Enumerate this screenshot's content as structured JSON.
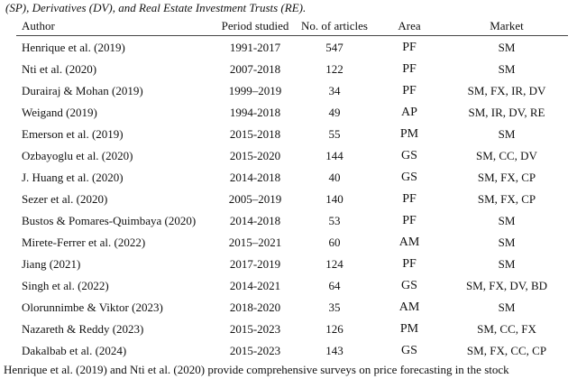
{
  "top_text": "(SP), Derivatives (DV), and Real Estate Investment Trusts (RE).",
  "table": {
    "headers": [
      "Author",
      "Period studied",
      "No. of articles",
      "Area",
      "Market"
    ],
    "rows": [
      [
        "Henrique et al. (2019)",
        "1991-2017",
        "547",
        "PF",
        "SM"
      ],
      [
        "Nti et al. (2020)",
        "2007-2018",
        "122",
        "PF",
        "SM"
      ],
      [
        "Durairaj & Mohan (2019)",
        "1999–2019",
        "34",
        "PF",
        "SM, FX, IR, DV"
      ],
      [
        "Weigand (2019)",
        "1994-2018",
        "49",
        "AP",
        "SM, IR, DV, RE"
      ],
      [
        "Emerson et al. (2019)",
        "2015-2018",
        "55",
        "PM",
        "SM"
      ],
      [
        "Ozbayoglu et al. (2020)",
        "2015-2020",
        "144",
        "GS",
        "SM, CC, DV"
      ],
      [
        "J. Huang et al. (2020)",
        "2014-2018",
        "40",
        "GS",
        "SM, FX, CP"
      ],
      [
        "Sezer et al. (2020)",
        "2005–2019",
        "140",
        "PF",
        "SM, FX, CP"
      ],
      [
        "Bustos & Pomares-Quimbaya (2020)",
        "2014-2018",
        "53",
        "PF",
        "SM"
      ],
      [
        "Mirete-Ferrer et al. (2022)",
        "2015–2021",
        "60",
        "AM",
        "SM"
      ],
      [
        "Jiang (2021)",
        "2017-2019",
        "124",
        "PF",
        "SM"
      ],
      [
        "Singh et al. (2022)",
        "2014-2021",
        "64",
        "GS",
        "SM, FX, DV, BD"
      ],
      [
        "Olorunnimbe & Viktor (2023)",
        "2018-2020",
        "35",
        "AM",
        "SM"
      ],
      [
        "Nazareth & Reddy (2023)",
        "2015-2023",
        "126",
        "PM",
        "SM, CC, FX"
      ],
      [
        "Dakalbab et al. (2024)",
        "2015-2023",
        "143",
        "GS",
        "SM, FX, CC, CP"
      ]
    ]
  },
  "bottom_text": "Henrique et al. (2019) and Nti et al. (2020) provide comprehensive surveys on price forecasting in the stock"
}
